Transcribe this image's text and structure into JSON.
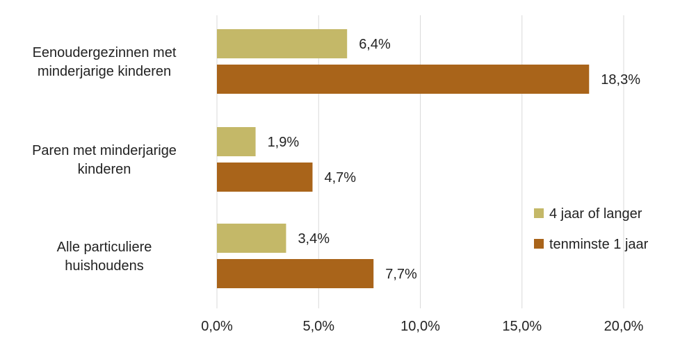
{
  "chart_data": {
    "type": "bar",
    "orientation": "horizontal",
    "categories": [
      [
        "Eenoudergezinnen met",
        "minderjarige kinderen"
      ],
      [
        "Paren met  minderjarige",
        "kinderen"
      ],
      [
        "Alle particuliere",
        "huishoudens"
      ]
    ],
    "series": [
      {
        "name": "4 jaar of langer",
        "color": "#c4b868",
        "values": [
          6.4,
          1.9,
          3.4
        ],
        "labels": [
          "6,4%",
          "1,9%",
          "3,4%"
        ]
      },
      {
        "name": "tenminste 1 jaar",
        "color": "#a9641a",
        "values": [
          18.3,
          4.7,
          7.7
        ],
        "labels": [
          "18,3%",
          "4,7%",
          "7,7%"
        ]
      }
    ],
    "xlim": [
      0,
      20
    ],
    "xticks": [
      0,
      5,
      10,
      15,
      20
    ],
    "xtick_labels": [
      "0,0%",
      "5,0%",
      "10,0%",
      "15,0%",
      "20,0%"
    ],
    "grid": "vertical",
    "legend_position": "right"
  }
}
